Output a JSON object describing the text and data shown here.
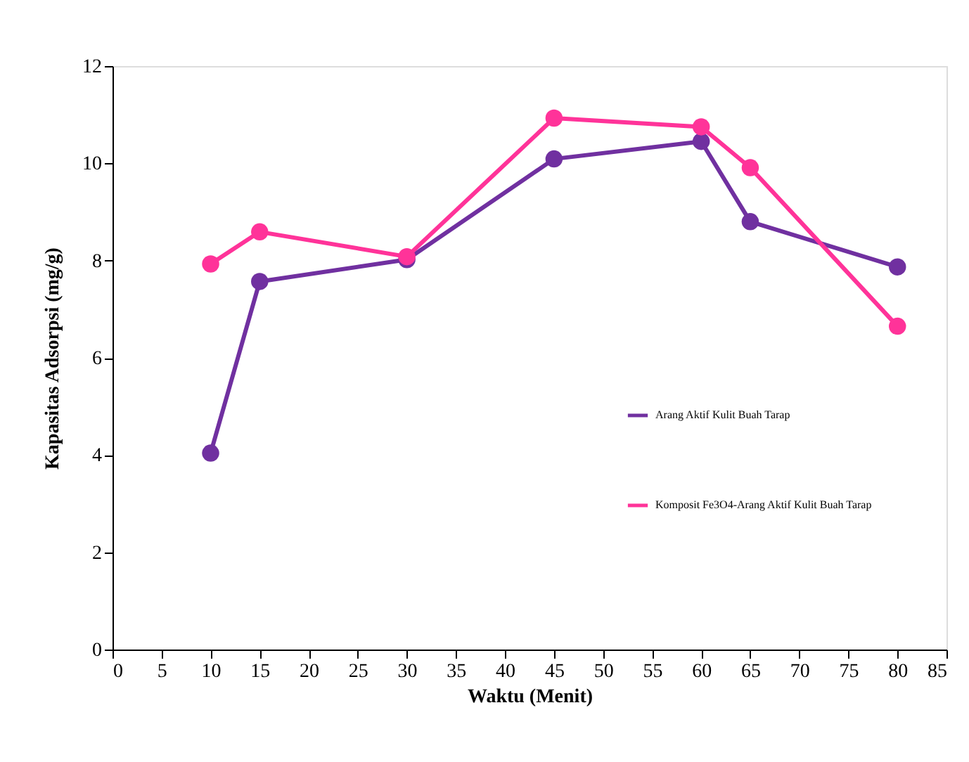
{
  "chart_data": {
    "type": "line",
    "xlabel": "Waktu (Menit)",
    "ylabel": "Kapasitas Adsorpsi (mg/g)",
    "x": [
      10,
      15,
      30,
      45,
      60,
      65,
      80
    ],
    "series": [
      {
        "name": "Arang Aktif Kulit Buah Tarap",
        "color": "#7030a0",
        "values": [
          4.04,
          7.57,
          8.02,
          10.09,
          10.45,
          8.8,
          7.87
        ]
      },
      {
        "name": "Komposit Fe3O4-Arang Aktif Kulit Buah Tarap",
        "color": "#ff3399",
        "values": [
          7.93,
          8.59,
          8.08,
          10.93,
          10.75,
          9.91,
          6.65
        ]
      }
    ],
    "xlim": [
      0,
      85
    ],
    "xticks": [
      0,
      5,
      10,
      15,
      20,
      25,
      30,
      35,
      40,
      45,
      50,
      55,
      60,
      65,
      70,
      75,
      80,
      85
    ],
    "ylim": [
      0,
      12
    ],
    "yticks": [
      0,
      2,
      4,
      6,
      8,
      10,
      12
    ],
    "grid": false,
    "legend": "right",
    "marker": "circle",
    "line_style": "solid"
  }
}
